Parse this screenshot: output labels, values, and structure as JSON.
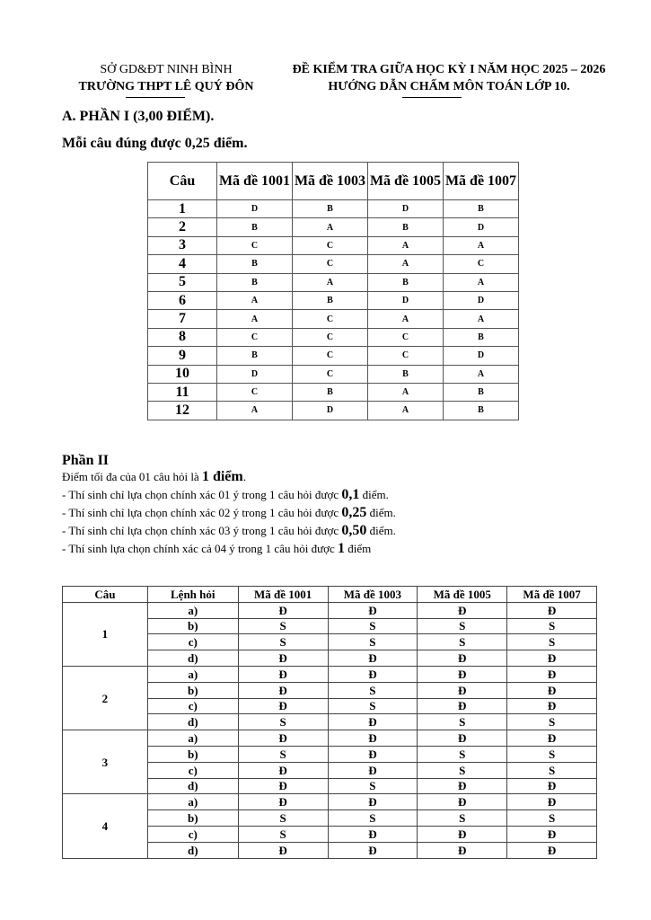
{
  "header": {
    "dept": "SỞ GD&ĐT NINH BÌNH",
    "school": "TRƯỜNG THPT LÊ QUÝ ĐÔN",
    "exam_title": "ĐỀ KIỂM TRA GIỮA HỌC KỲ I NĂM HỌC 2025 – 2026",
    "guide_title": "HƯỚNG DẪN CHẤM MÔN TOÁN LỚP 10."
  },
  "part1": {
    "title": "A. PHẦN I (3,00 ĐIỂM).",
    "note": "Mỗi câu đúng được 0,25 điểm.",
    "columns": [
      "Câu",
      "Mã đề 1001",
      "Mã đề 1003",
      "Mã đề 1005",
      "Mã đề 1007"
    ],
    "rows": [
      [
        "1",
        "D",
        "B",
        "D",
        "B"
      ],
      [
        "2",
        "B",
        "A",
        "B",
        "D"
      ],
      [
        "3",
        "C",
        "C",
        "A",
        "A"
      ],
      [
        "4",
        "B",
        "C",
        "A",
        "C"
      ],
      [
        "5",
        "B",
        "A",
        "B",
        "A"
      ],
      [
        "6",
        "A",
        "B",
        "D",
        "D"
      ],
      [
        "7",
        "A",
        "C",
        "A",
        "A"
      ],
      [
        "8",
        "C",
        "C",
        "C",
        "B"
      ],
      [
        "9",
        "B",
        "C",
        "C",
        "D"
      ],
      [
        "10",
        "D",
        "C",
        "B",
        "A"
      ],
      [
        "11",
        "C",
        "B",
        "A",
        "B"
      ],
      [
        "12",
        "A",
        "D",
        "A",
        "B"
      ]
    ]
  },
  "part2": {
    "title": "Phần II",
    "lines": [
      {
        "pre": "Điểm tối đa của 01 câu hỏi là ",
        "bold": "1 điểm",
        "post": "."
      },
      {
        "pre": "- Thí sinh chỉ lựa chọn chính xác 01 ý trong 1 câu hỏi được ",
        "bold": "0,1",
        "post": " điểm."
      },
      {
        "pre": "- Thí sinh chỉ lựa chọn chính xác 02 ý trong 1 câu hỏi được ",
        "bold": "0,25",
        "post": " điểm."
      },
      {
        "pre": "- Thí sinh chỉ lựa chọn chính xác 03 ý trong 1 câu hỏi được ",
        "bold": "0,50",
        "post": " điểm."
      },
      {
        "pre": "- Thí sinh lựa chọn chính xác cả 04 ý trong 1 câu hỏi được ",
        "bold": "1",
        "post": " điểm"
      }
    ],
    "columns": [
      "Câu",
      "Lệnh hỏi",
      "Mã đề 1001",
      "Mã đề 1003",
      "Mã đề 1005",
      "Mã đề 1007"
    ],
    "questions": [
      {
        "number": "1",
        "items": [
          [
            "a)",
            "Đ",
            "Đ",
            "Đ",
            "Đ"
          ],
          [
            "b)",
            "S",
            "S",
            "S",
            "S"
          ],
          [
            "c)",
            "S",
            "S",
            "S",
            "S"
          ],
          [
            "d)",
            "Đ",
            "Đ",
            "Đ",
            "Đ"
          ]
        ]
      },
      {
        "number": "2",
        "items": [
          [
            "a)",
            "Đ",
            "Đ",
            "Đ",
            "Đ"
          ],
          [
            "b)",
            "Đ",
            "S",
            "Đ",
            "Đ"
          ],
          [
            "c)",
            "Đ",
            "S",
            "Đ",
            "Đ"
          ],
          [
            "d)",
            "S",
            "Đ",
            "S",
            "S"
          ]
        ]
      },
      {
        "number": "3",
        "items": [
          [
            "a)",
            "Đ",
            "Đ",
            "Đ",
            "Đ"
          ],
          [
            "b)",
            "S",
            "Đ",
            "S",
            "S"
          ],
          [
            "c)",
            "Đ",
            "Đ",
            "S",
            "S"
          ],
          [
            "d)",
            "Đ",
            "S",
            "Đ",
            "Đ"
          ]
        ]
      },
      {
        "number": "4",
        "items": [
          [
            "a)",
            "Đ",
            "Đ",
            "Đ",
            "Đ"
          ],
          [
            "b)",
            "S",
            "S",
            "S",
            "S"
          ],
          [
            "c)",
            "S",
            "Đ",
            "Đ",
            "Đ"
          ],
          [
            "d)",
            "Đ",
            "Đ",
            "Đ",
            "Đ"
          ]
        ]
      }
    ]
  }
}
